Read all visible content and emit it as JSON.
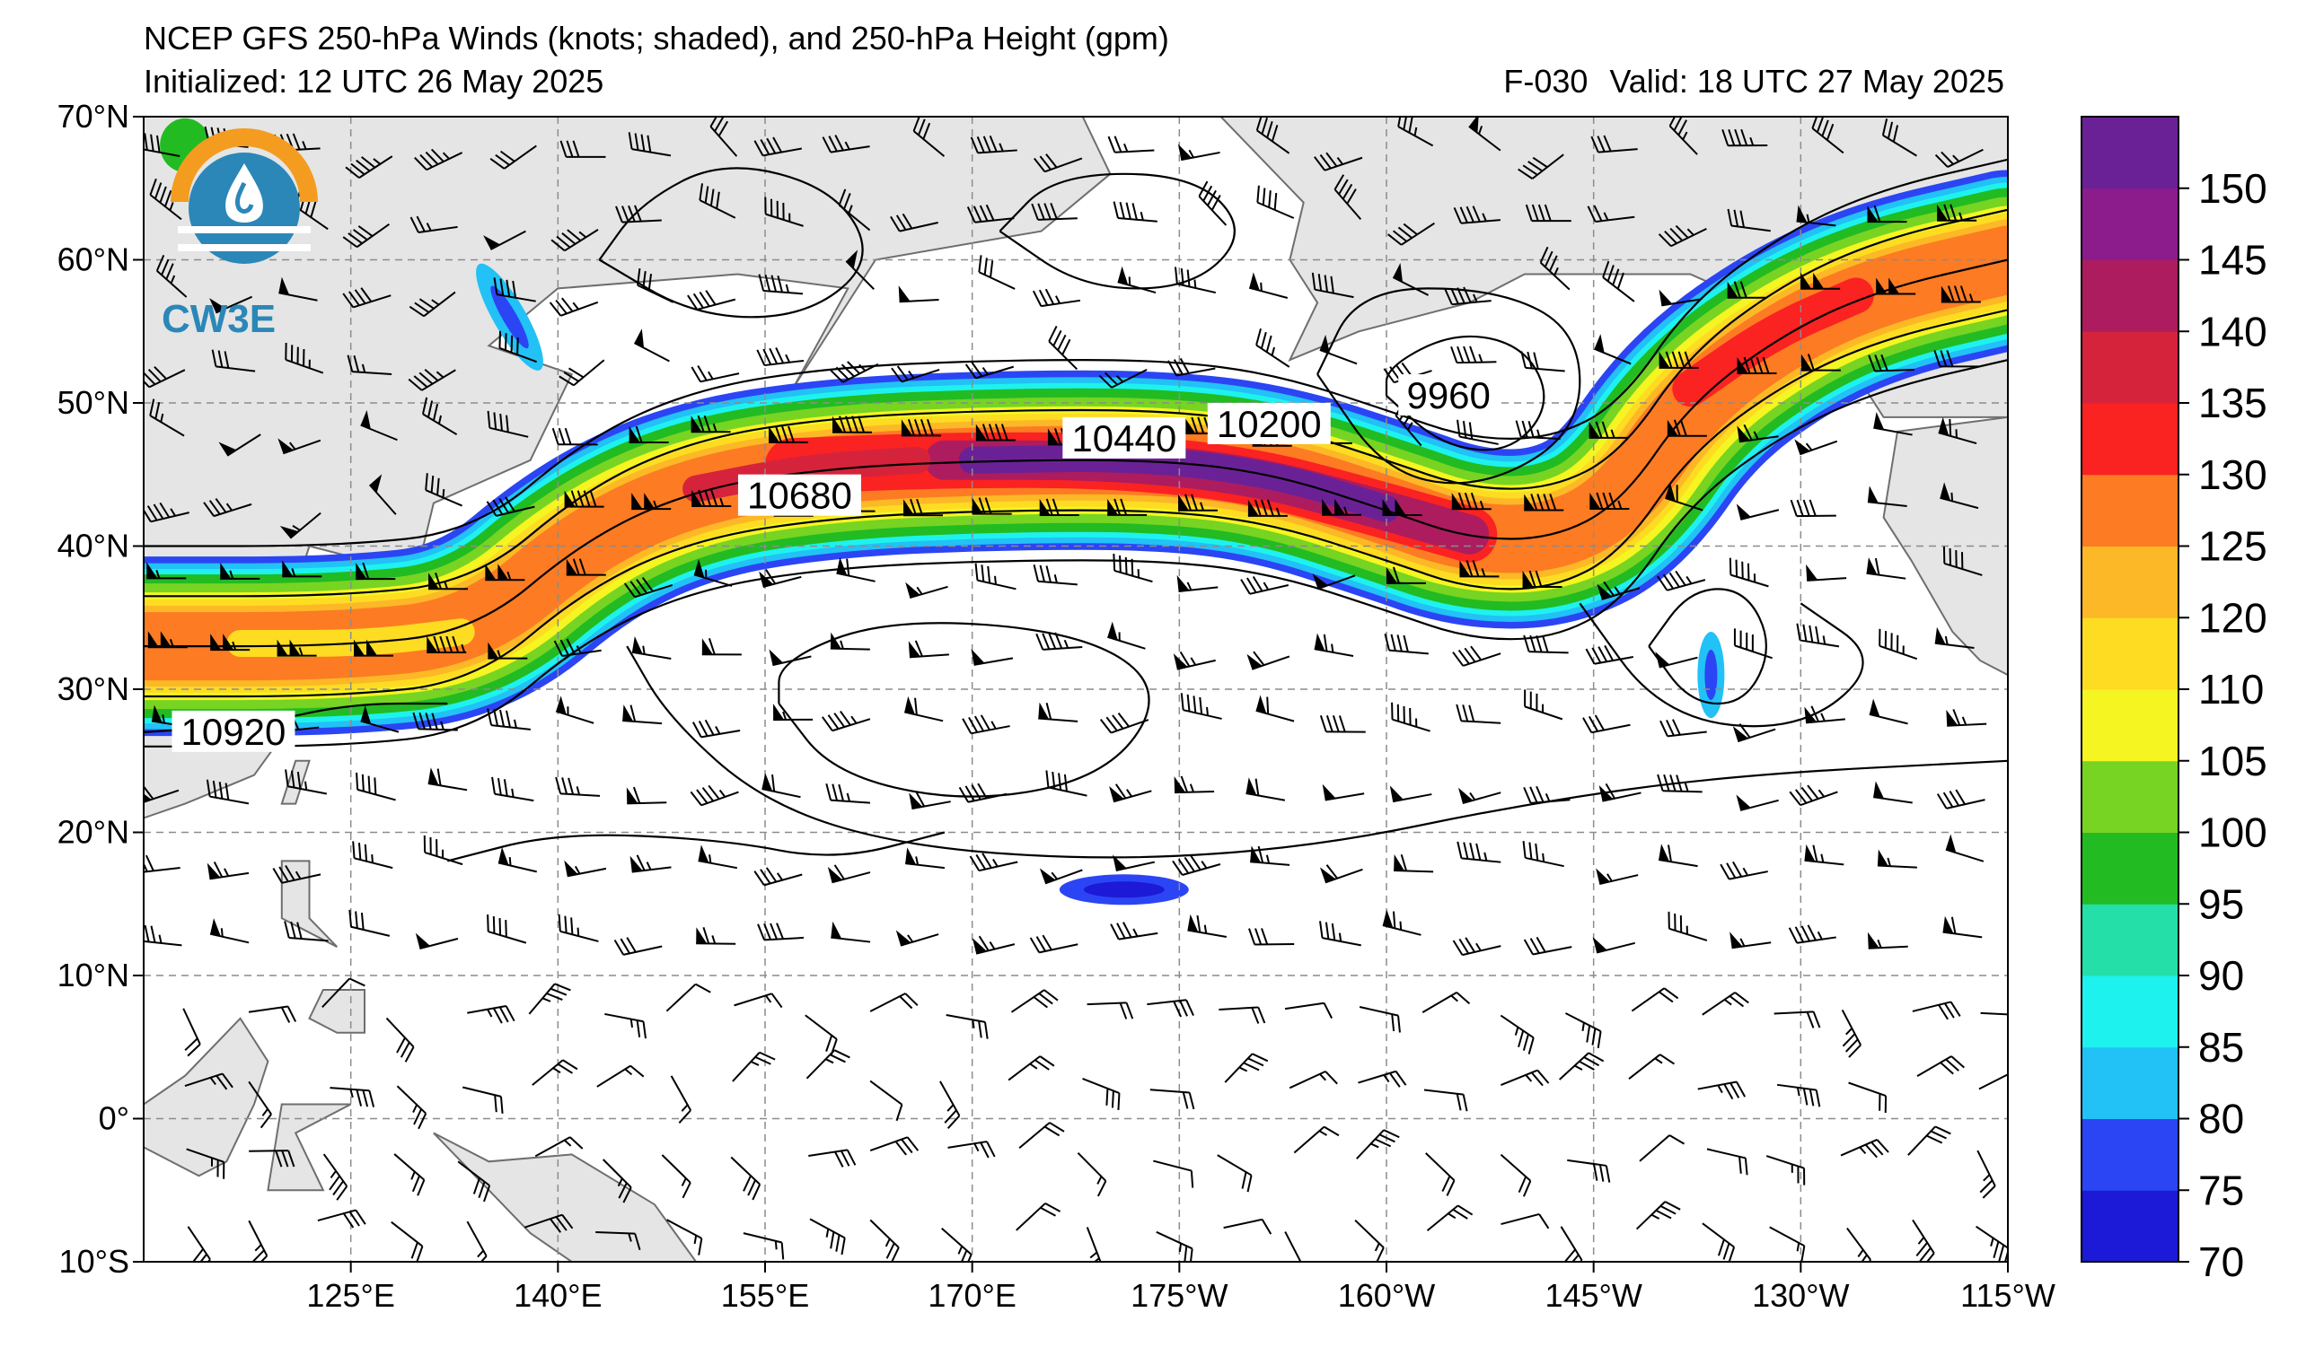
{
  "header": {
    "title": "NCEP GFS 250-hPa Winds (knots; shaded), and 250-hPa Height (gpm)",
    "initialized": "Initialized: 12 UTC 26 May 2025",
    "forecast": "F-030",
    "valid": "Valid: 18 UTC 27 May 2025"
  },
  "logo": {
    "text": "CW3E",
    "color": "#2b87b8",
    "accent": "#f39c1f"
  },
  "map": {
    "lon_range": [
      110,
      245
    ],
    "lat_range": [
      -10,
      70
    ],
    "lat_ticks": [
      {
        "value": 70,
        "label": "70°N"
      },
      {
        "value": 60,
        "label": "60°N"
      },
      {
        "value": 50,
        "label": "50°N"
      },
      {
        "value": 40,
        "label": "40°N"
      },
      {
        "value": 30,
        "label": "30°N"
      },
      {
        "value": 20,
        "label": "20°N"
      },
      {
        "value": 10,
        "label": "10°N"
      },
      {
        "value": 0,
        "label": "0°"
      },
      {
        "value": -10,
        "label": "10°S"
      }
    ],
    "lon_ticks": [
      {
        "value": 125,
        "label": "125°E"
      },
      {
        "value": 140,
        "label": "140°E"
      },
      {
        "value": 155,
        "label": "155°E"
      },
      {
        "value": 170,
        "label": "170°E"
      },
      {
        "value": 185,
        "label": "175°W"
      },
      {
        "value": 200,
        "label": "160°W"
      },
      {
        "value": 215,
        "label": "145°W"
      },
      {
        "value": 230,
        "label": "130°W"
      },
      {
        "value": 245,
        "label": "115°W"
      }
    ],
    "land_color": "#e5e5e5",
    "gridlines": true
  },
  "height_labels": [
    {
      "text": "10440",
      "lon": 181,
      "lat": 47.5
    },
    {
      "text": "10680",
      "lon": 157.5,
      "lat": 43.5
    },
    {
      "text": "10200",
      "lon": 191.5,
      "lat": 48.5
    },
    {
      "text": "9960",
      "lon": 204.5,
      "lat": 50.5
    },
    {
      "text": "10920",
      "lon": 116.5,
      "lat": 27
    }
  ],
  "colorbar": {
    "levels": [
      70,
      75,
      80,
      85,
      90,
      95,
      100,
      105,
      110,
      120,
      125,
      130,
      135,
      140,
      145,
      150
    ],
    "labels": [
      "70",
      "75",
      "80",
      "85",
      "90",
      "95",
      "100",
      "105",
      "110",
      "120",
      "125",
      "130",
      "135",
      "140",
      "145",
      "150"
    ],
    "colors": [
      "#1c1ad6",
      "#2b45f4",
      "#22c1f6",
      "#1ef2ee",
      "#24e0a8",
      "#22bb22",
      "#77d422",
      "#f5f522",
      "#fddc22",
      "#fcb826",
      "#fd7b22",
      "#fb2222",
      "#d6233c",
      "#ad1c5e",
      "#8c1c8c",
      "#6b2196"
    ]
  }
}
